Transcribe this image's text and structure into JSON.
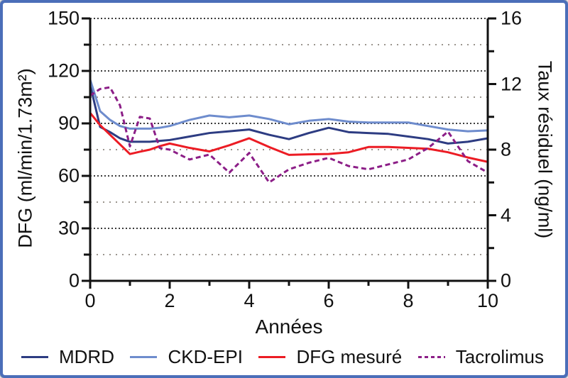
{
  "figure": {
    "border_color": "#4b6eb9",
    "background_color": "#ffffff"
  },
  "chart_data": {
    "type": "line",
    "title": "",
    "xlabel": "Années",
    "ylabel_left": "DFG (ml/min/1.73m²)",
    "ylabel_right": "Taux résiduel (ng/ml)",
    "xlim": [
      0,
      10
    ],
    "ylim_left": [
      0,
      150
    ],
    "ylim_right": [
      0,
      16
    ],
    "x_ticks_major": [
      0,
      2,
      4,
      6,
      8,
      10
    ],
    "x_ticks_minor": [
      1,
      3,
      5,
      7,
      9
    ],
    "y_ticks_left_major": [
      0,
      30,
      60,
      90,
      120,
      150
    ],
    "y_ticks_left_minor": [
      15,
      45,
      75,
      105,
      135
    ],
    "y_ticks_right_major": [
      0,
      4,
      8,
      12,
      16
    ],
    "y_ticks_right_minor": [
      2,
      6,
      10,
      14
    ],
    "grid": "horizontal-dotted, dark dots on major left ticks, light dots on minor",
    "legend_position": "bottom",
    "x": [
      0,
      0.25,
      0.5,
      0.75,
      1,
      1.25,
      1.5,
      1.75,
      2,
      2.5,
      3,
      3.5,
      4,
      4.5,
      5,
      5.5,
      6,
      6.5,
      7,
      7.5,
      8,
      8.5,
      9,
      9.5,
      10
    ],
    "series": [
      {
        "name": "MDRD",
        "axis": "left",
        "color": "#2d3c82",
        "style": "solid",
        "values": [
          112,
          88,
          85,
          81.5,
          79.5,
          79.5,
          79.5,
          80,
          80.5,
          82.5,
          84.5,
          85.5,
          86.5,
          83.5,
          81,
          84.5,
          87.5,
          85,
          84.5,
          84,
          82.5,
          81,
          78.5,
          79.5,
          81.5
        ]
      },
      {
        "name": "CKD-EPI",
        "axis": "left",
        "color": "#6e8ccd",
        "style": "solid",
        "values": [
          115,
          97,
          92,
          88.5,
          87,
          87,
          87,
          87.5,
          88.5,
          92,
          94.5,
          93.5,
          94.5,
          92.5,
          89.5,
          91.5,
          92.5,
          91,
          90.5,
          90.5,
          90.5,
          88.5,
          86.5,
          85.5,
          86
        ]
      },
      {
        "name": "DFG mesuré",
        "axis": "left",
        "color": "#ec1c24",
        "style": "solid",
        "values": [
          96,
          89,
          83.5,
          78,
          72.5,
          73.8,
          75,
          77,
          78.5,
          76,
          74,
          77.5,
          81.5,
          76.5,
          72,
          72.3,
          72.5,
          73.5,
          76.5,
          76.5,
          76,
          75.5,
          73.5,
          70.5,
          68
        ]
      },
      {
        "name": "Tacrolimus",
        "axis": "right",
        "color": "#8c1e87",
        "style": "dashed",
        "values": [
          11.3,
          11.7,
          11.8,
          10.7,
          8.2,
          10.0,
          9.9,
          8.1,
          8.0,
          7.4,
          7.7,
          6.6,
          7.8,
          6.0,
          6.8,
          7.2,
          7.5,
          7.0,
          6.8,
          7.1,
          7.4,
          8.1,
          9.1,
          7.3,
          6.6
        ]
      }
    ]
  }
}
